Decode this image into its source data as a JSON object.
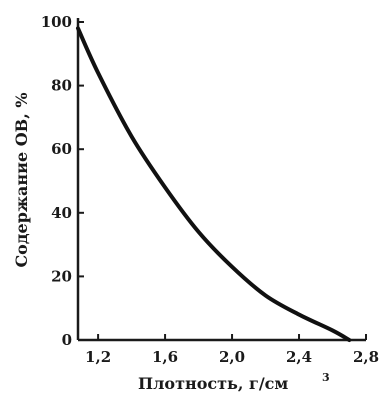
{
  "chart_data": {
    "type": "line",
    "title": "",
    "xlabel": "Плотность, г/см",
    "xlabel_sup": "3",
    "ylabel": "Содержание ОВ, %",
    "xlim": [
      1.08,
      2.8
    ],
    "ylim": [
      0,
      100
    ],
    "x_ticks": [
      1.2,
      1.6,
      2.0,
      2.4,
      2.8
    ],
    "x_tick_labels": [
      "1,2",
      "1,6",
      "2,0",
      "2,4",
      "2,8"
    ],
    "y_ticks": [
      0,
      20,
      40,
      60,
      80,
      100
    ],
    "y_tick_labels": [
      "0",
      "20",
      "40",
      "60",
      "80",
      "100"
    ],
    "grid": false,
    "series": [
      {
        "x": [
          1.08,
          1.2,
          1.4,
          1.6,
          1.8,
          2.0,
          2.2,
          2.4,
          2.6,
          2.7
        ],
        "y": [
          98,
          84,
          64,
          48,
          34,
          23,
          14,
          8,
          3,
          0
        ]
      }
    ]
  }
}
